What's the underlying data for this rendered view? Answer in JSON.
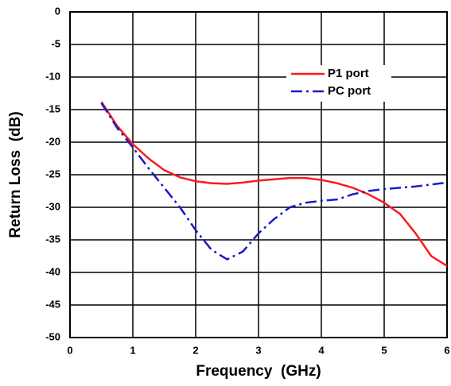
{
  "chart_data": {
    "type": "line",
    "x_label": "Frequency  (GHz)",
    "y_label": "Return Loss  (dB)",
    "x": [
      0.5,
      0.75,
      1.0,
      1.25,
      1.5,
      1.75,
      2.0,
      2.25,
      2.5,
      2.75,
      3.0,
      3.25,
      3.5,
      3.75,
      4.0,
      4.25,
      4.5,
      4.75,
      5.0,
      5.25,
      5.5,
      5.75,
      6.0
    ],
    "series": [
      {
        "name": "P1 port",
        "color": "#ff1a1a",
        "values": [
          -13.8,
          -17.5,
          -20.3,
          -22.5,
          -24.3,
          -25.4,
          -26.0,
          -26.3,
          -26.4,
          -26.2,
          -25.9,
          -25.7,
          -25.5,
          -25.5,
          -25.8,
          -26.3,
          -27.0,
          -28.0,
          -29.3,
          -31.0,
          -34.0,
          -37.5,
          -39.0
        ]
      },
      {
        "name": "PC port",
        "color": "#1a1acc",
        "values": [
          -14.0,
          -17.8,
          -20.8,
          -24.0,
          -27.0,
          -30.0,
          -33.5,
          -36.5,
          -38.0,
          -36.8,
          -34.0,
          -31.8,
          -30.0,
          -29.3,
          -29.0,
          -28.8,
          -28.0,
          -27.5,
          -27.2,
          -27.0,
          -26.8,
          -26.5,
          -26.2
        ]
      }
    ],
    "xlim": [
      0,
      6
    ],
    "xticks": [
      0,
      1,
      2,
      3,
      4,
      5,
      6
    ],
    "ylim": [
      -50,
      0
    ],
    "yticks": [
      0,
      -5,
      -10,
      -15,
      -20,
      -25,
      -30,
      -35,
      -40,
      -45,
      -50
    ],
    "grid": true,
    "legend": "upper right"
  }
}
